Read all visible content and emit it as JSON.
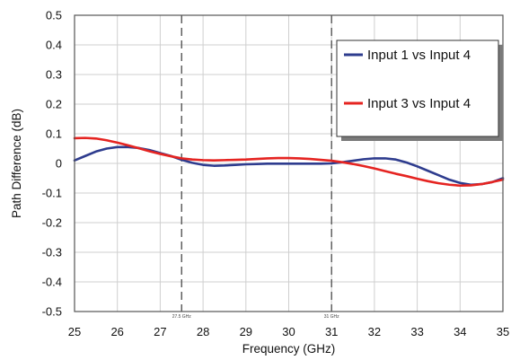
{
  "chart_data": {
    "type": "line",
    "title": "",
    "xlabel": "Frequency (GHz)",
    "ylabel": "Path Difference (dB)",
    "xlim": [
      25,
      35
    ],
    "ylim": [
      -0.5,
      0.5
    ],
    "x_ticks": [
      25,
      26,
      27,
      28,
      29,
      30,
      31,
      32,
      33,
      34,
      35
    ],
    "y_ticks": [
      0.5,
      0.4,
      0.3,
      0.2,
      0.1,
      0,
      -0.1,
      -0.2,
      -0.3,
      -0.4,
      -0.5
    ],
    "x_tick_labels": [
      "25",
      "26",
      "27",
      "28",
      "29",
      "30",
      "31",
      "32",
      "33",
      "34",
      "35"
    ],
    "y_tick_labels": [
      "0.5",
      "0.4",
      "0.3",
      "0.2",
      "0.1",
      "0",
      "-0.1",
      "-0.2",
      "-0.3",
      "-0.4",
      "-0.5"
    ],
    "grid": true,
    "legend_position": "top-right",
    "reference_lines": [
      {
        "x": 27.5,
        "label": "27.5 GHz"
      },
      {
        "x": 31,
        "label": "31 GHz"
      }
    ],
    "series": [
      {
        "name": "Input 1 vs Input 4",
        "color": "#2E3C8E",
        "x": [
          25,
          25.25,
          25.5,
          25.75,
          26,
          26.25,
          26.5,
          26.75,
          27,
          27.25,
          27.5,
          27.75,
          28,
          28.25,
          28.5,
          28.75,
          29,
          29.25,
          29.5,
          29.75,
          30,
          30.25,
          30.5,
          30.75,
          31,
          31.25,
          31.5,
          31.75,
          32,
          32.25,
          32.5,
          32.75,
          33,
          33.25,
          33.5,
          33.75,
          34,
          34.25,
          34.5,
          34.75,
          35
        ],
        "y": [
          0.01,
          0.025,
          0.04,
          0.05,
          0.055,
          0.055,
          0.052,
          0.045,
          0.035,
          0.025,
          0.012,
          0.002,
          -0.005,
          -0.008,
          -0.007,
          -0.005,
          -0.003,
          -0.002,
          -0.001,
          -0.001,
          -0.001,
          -0.001,
          -0.001,
          -0.001,
          0,
          0.004,
          0.009,
          0.014,
          0.017,
          0.017,
          0.013,
          0.003,
          -0.01,
          -0.025,
          -0.04,
          -0.055,
          -0.066,
          -0.072,
          -0.07,
          -0.063,
          -0.05
        ]
      },
      {
        "name": "Input 3 vs Input 4",
        "color": "#E52421",
        "x": [
          25,
          25.25,
          25.5,
          25.75,
          26,
          26.25,
          26.5,
          26.75,
          27,
          27.25,
          27.5,
          27.75,
          28,
          28.25,
          28.5,
          28.75,
          29,
          29.25,
          29.5,
          29.75,
          30,
          30.25,
          30.5,
          30.75,
          31,
          31.25,
          31.5,
          31.75,
          32,
          32.25,
          32.5,
          32.75,
          33,
          33.25,
          33.5,
          33.75,
          34,
          34.25,
          34.5,
          34.75,
          35
        ],
        "y": [
          0.085,
          0.086,
          0.084,
          0.078,
          0.07,
          0.061,
          0.051,
          0.041,
          0.032,
          0.024,
          0.017,
          0.013,
          0.011,
          0.01,
          0.011,
          0.012,
          0.013,
          0.015,
          0.017,
          0.018,
          0.018,
          0.017,
          0.015,
          0.012,
          0.009,
          0.004,
          -0.002,
          -0.009,
          -0.017,
          -0.026,
          -0.035,
          -0.043,
          -0.052,
          -0.06,
          -0.067,
          -0.072,
          -0.075,
          -0.074,
          -0.07,
          -0.063,
          -0.055
        ]
      }
    ]
  }
}
